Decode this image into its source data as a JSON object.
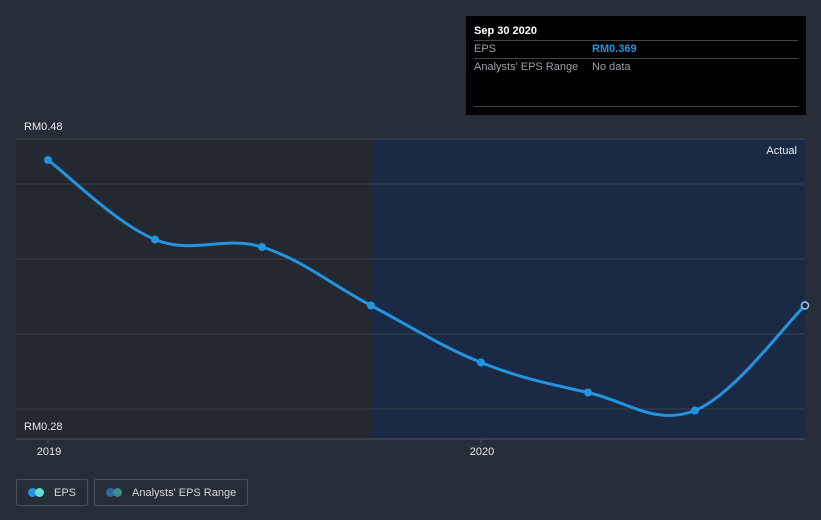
{
  "tooltip": {
    "date": "Sep 30 2020",
    "rows": [
      {
        "label": "EPS",
        "value": "RM0.369"
      },
      {
        "label": "Analysts' EPS Range",
        "value": "No data"
      }
    ]
  },
  "axis": {
    "y_top": "RM0.48",
    "y_bottom": "RM0.28",
    "x_ticks": [
      {
        "label": "2019"
      },
      {
        "label": "2020"
      }
    ]
  },
  "region_label": "Actual",
  "legend": [
    {
      "label": "EPS",
      "colors": [
        "#2394df",
        "#5ee0d9"
      ]
    },
    {
      "label": "Analysts' EPS Range",
      "colors": [
        "#2a6a9c",
        "#3d8a8a"
      ]
    }
  ],
  "colors": {
    "background": "#262c38",
    "past_region": "#232831",
    "actual_region": "#1a2a45",
    "line": "#2394df",
    "grid": "#3a414d"
  },
  "chart_data": {
    "type": "line",
    "title": "",
    "xlabel": "",
    "ylabel": "EPS",
    "ylim": [
      0.28,
      0.48
    ],
    "x": [
      "Dec 2018",
      "Mar 2019",
      "Jun 2019",
      "Sep 2019",
      "Dec 2019",
      "Mar 2020",
      "Jun 2020",
      "Sep 2020"
    ],
    "series": [
      {
        "name": "EPS",
        "values": [
          0.466,
          0.413,
          0.408,
          0.369,
          0.331,
          0.311,
          0.299,
          0.369
        ]
      }
    ],
    "x_tick_labels": [
      "2019",
      "2020"
    ],
    "y_tick_labels": [
      "RM0.48",
      "RM0.28"
    ],
    "annotations": [
      "Actual"
    ],
    "legend": [
      "EPS",
      "Analysts' EPS Range"
    ],
    "grid": true,
    "legend_position": "bottom-left"
  }
}
